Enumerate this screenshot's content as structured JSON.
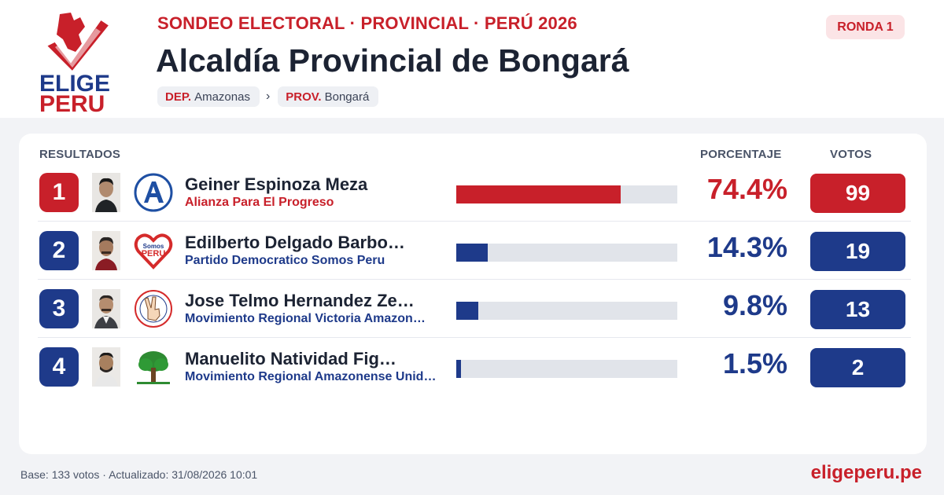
{
  "brand": {
    "line1": "ELIGE",
    "line2": "PERU",
    "red": "#c8202a",
    "blue": "#1e3a8a"
  },
  "header": {
    "kicker": "SONDEO ELECTORAL · PROVINCIAL · PERÚ 2026",
    "title": "Alcaldía Provincial de Bongará",
    "round": "RONDA 1",
    "breadcrumb": [
      {
        "key": "DEP.",
        "value": "Amazonas"
      },
      {
        "key": "PROV.",
        "value": "Bongará"
      }
    ],
    "breadcrumb_sep": "›"
  },
  "table": {
    "headers": {
      "results": "RESULTADOS",
      "percent": "PORCENTAJE",
      "votes": "VOTOS"
    },
    "rows": [
      {
        "rank": "1",
        "candidate": "Geiner Espinoza Meza",
        "party": "Alianza Para El Progreso",
        "percent_label": "74.4%",
        "share": 0.744,
        "votes": "99",
        "color": "#c8202a",
        "party_logo_icon": "alianza-para-el-progreso-a-icon"
      },
      {
        "rank": "2",
        "candidate": "Edilberto Delgado Barbo…",
        "party": "Partido Democratico Somos Peru",
        "percent_label": "14.3%",
        "share": 0.143,
        "votes": "19",
        "color": "#1e3a8a",
        "party_logo_icon": "somos-peru-heart-icon"
      },
      {
        "rank": "3",
        "candidate": "Jose Telmo Hernandez Ze…",
        "party": "Movimiento Regional Victoria Amazon…",
        "percent_label": "9.8%",
        "share": 0.098,
        "votes": "13",
        "color": "#1e3a8a",
        "party_logo_icon": "victoria-hand-icon"
      },
      {
        "rank": "4",
        "candidate": "Manuelito Natividad Fig…",
        "party": "Movimiento Regional Amazonense Unid…",
        "percent_label": "1.5%",
        "share": 0.015,
        "votes": "2",
        "color": "#1e3a8a",
        "party_logo_icon": "green-tree-icon"
      }
    ]
  },
  "footer": {
    "base": "Base: 133 votos · Actualizado: 31/08/2026 10:01",
    "site": "eligeperu.pe"
  }
}
